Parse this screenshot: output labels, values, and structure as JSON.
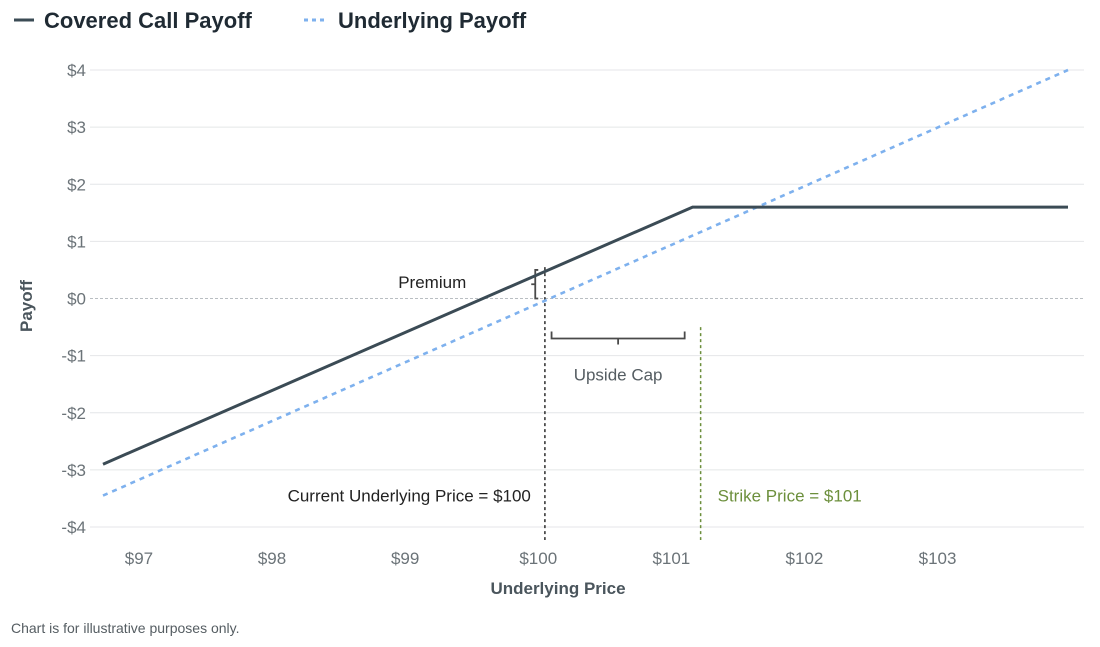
{
  "chart_data": {
    "type": "line",
    "title": "",
    "xlabel": "Underlying Price",
    "ylabel": "Payoff",
    "xlim": [
      96.73,
      103.98
    ],
    "ylim": [
      -4,
      4
    ],
    "x_ticks": [
      97,
      98,
      99,
      100,
      101,
      102,
      103
    ],
    "x_tick_labels": [
      "$97",
      "$98",
      "$99",
      "$100",
      "$101",
      "$102",
      "$103"
    ],
    "y_ticks": [
      4,
      3,
      2,
      1,
      0,
      -1,
      -2,
      -3,
      -4
    ],
    "y_tick_labels": [
      "$4",
      "$3",
      "$2",
      "$1",
      "$0",
      "-$1",
      "-$2",
      "-$3",
      "-$4"
    ],
    "grid": true,
    "legend_position": "top-left",
    "series": [
      {
        "name": "Covered Call Payoff",
        "style": "solid",
        "color": "#3b4b55",
        "points": [
          [
            96.73,
            -2.9
          ],
          [
            101.16,
            1.6
          ],
          [
            103.98,
            1.6
          ]
        ]
      },
      {
        "name": "Underlying Payoff",
        "style": "dotted",
        "color": "#7eb1ee",
        "points": [
          [
            96.73,
            -3.45
          ],
          [
            103.98,
            4.0
          ]
        ]
      }
    ],
    "annotations": {
      "premium": {
        "label": "Premium",
        "x": 100.0,
        "from": 0.0,
        "to": 0.5
      },
      "upside_cap": {
        "label": "Upside Cap",
        "from_x": 100.1,
        "to_x": 101.1,
        "y": -0.7
      },
      "current_price": {
        "label": "Current Underlying Price = $100",
        "x": 100.05,
        "color": "#2d2d2d"
      },
      "strike_price": {
        "label": "Strike Price = $101",
        "x": 101.22,
        "color": "#6c8f3c"
      }
    }
  },
  "footnote": "Chart is for illustrative purposes only."
}
